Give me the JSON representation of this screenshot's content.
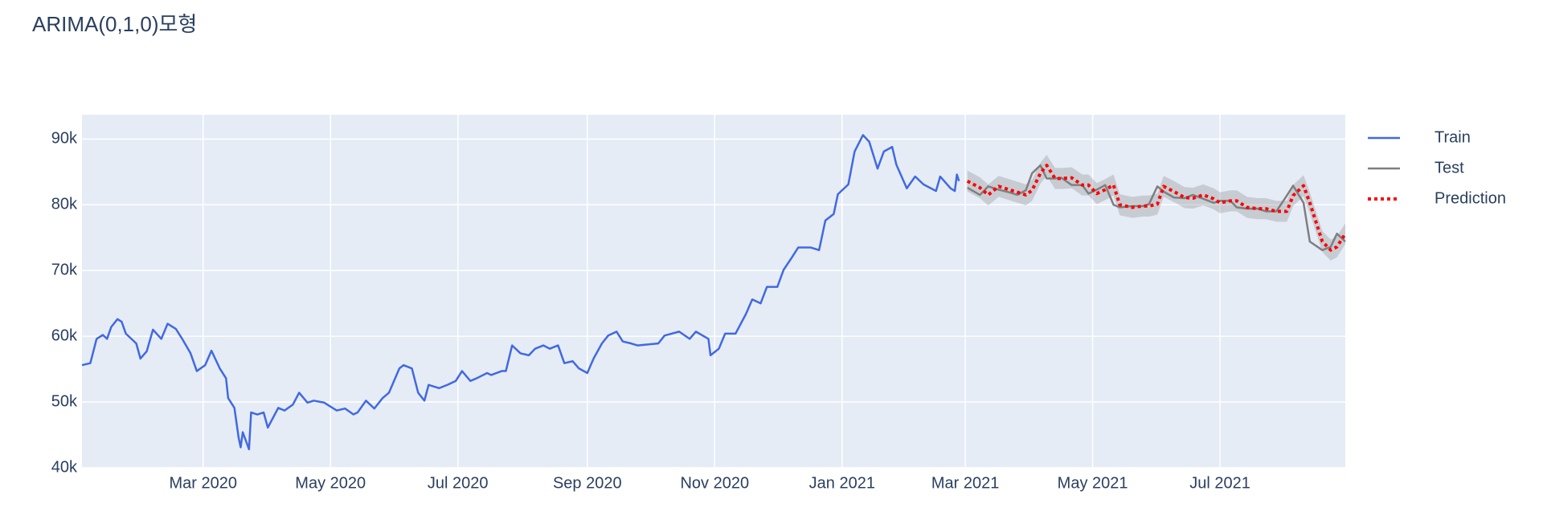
{
  "chart_data": {
    "type": "line",
    "title": "ARIMA(0,1,0)모형",
    "xlim": [
      "2020-01-03",
      "2021-08-30"
    ],
    "xticks": [
      {
        "value": "2020-03-01",
        "label": "Mar 2020"
      },
      {
        "value": "2020-05-01",
        "label": "May 2020"
      },
      {
        "value": "2020-07-01",
        "label": "Jul 2020"
      },
      {
        "value": "2020-09-01",
        "label": "Sep 2020"
      },
      {
        "value": "2020-11-01",
        "label": "Nov 2020"
      },
      {
        "value": "2021-01-01",
        "label": "Jan 2021"
      },
      {
        "value": "2021-03-01",
        "label": "Mar 2021"
      },
      {
        "value": "2021-05-01",
        "label": "May 2021"
      },
      {
        "value": "2021-07-01",
        "label": "Jul 2021"
      }
    ],
    "ylim": [
      40000,
      93700
    ],
    "yticks": [
      {
        "value": 40000,
        "label": "40k"
      },
      {
        "value": 50000,
        "label": "50k"
      },
      {
        "value": 60000,
        "label": "60k"
      },
      {
        "value": 70000,
        "label": "70k"
      },
      {
        "value": 80000,
        "label": "80k"
      },
      {
        "value": 90000,
        "label": "90k"
      }
    ],
    "grid": true,
    "legend": "right",
    "series": [
      {
        "name": "Train",
        "color": "#4169e1",
        "dash": "solid",
        "x": [
          "2020-01-03",
          "2020-01-07",
          "2020-01-10",
          "2020-01-13",
          "2020-01-15",
          "2020-01-17",
          "2020-01-20",
          "2020-01-22",
          "2020-01-24",
          "2020-01-29",
          "2020-01-31",
          "2020-02-03",
          "2020-02-06",
          "2020-02-10",
          "2020-02-13",
          "2020-02-17",
          "2020-02-20",
          "2020-02-24",
          "2020-02-27",
          "2020-03-02",
          "2020-03-05",
          "2020-03-09",
          "2020-03-12",
          "2020-03-13",
          "2020-03-16",
          "2020-03-18",
          "2020-03-19",
          "2020-03-20",
          "2020-03-23",
          "2020-03-24",
          "2020-03-27",
          "2020-03-30",
          "2020-04-01",
          "2020-04-06",
          "2020-04-09",
          "2020-04-13",
          "2020-04-16",
          "2020-04-20",
          "2020-04-23",
          "2020-04-28",
          "2020-05-04",
          "2020-05-08",
          "2020-05-12",
          "2020-05-14",
          "2020-05-18",
          "2020-05-22",
          "2020-05-26",
          "2020-05-29",
          "2020-06-03",
          "2020-06-05",
          "2020-06-09",
          "2020-06-12",
          "2020-06-15",
          "2020-06-17",
          "2020-06-22",
          "2020-06-26",
          "2020-06-30",
          "2020-07-03",
          "2020-07-07",
          "2020-07-10",
          "2020-07-15",
          "2020-07-17",
          "2020-07-22",
          "2020-07-24",
          "2020-07-27",
          "2020-07-31",
          "2020-08-04",
          "2020-08-07",
          "2020-08-11",
          "2020-08-14",
          "2020-08-18",
          "2020-08-21",
          "2020-08-25",
          "2020-08-28",
          "2020-09-01",
          "2020-09-04",
          "2020-09-08",
          "2020-09-11",
          "2020-09-15",
          "2020-09-18",
          "2020-09-22",
          "2020-09-25",
          "2020-10-05",
          "2020-10-08",
          "2020-10-15",
          "2020-10-20",
          "2020-10-23",
          "2020-10-29",
          "2020-10-30",
          "2020-11-03",
          "2020-11-06",
          "2020-11-11",
          "2020-11-16",
          "2020-11-19",
          "2020-11-23",
          "2020-11-26",
          "2020-12-01",
          "2020-12-04",
          "2020-12-08",
          "2020-12-11",
          "2020-12-17",
          "2020-12-21",
          "2020-12-24",
          "2020-12-28",
          "2020-12-30",
          "2021-01-04",
          "2021-01-07",
          "2021-01-11",
          "2021-01-14",
          "2021-01-18",
          "2021-01-21",
          "2021-01-25",
          "2021-01-27",
          "2021-02-01",
          "2021-02-05",
          "2021-02-09",
          "2021-02-15",
          "2021-02-17",
          "2021-02-22",
          "2021-02-24",
          "2021-02-25",
          "2021-02-26"
        ],
        "values": [
          55600,
          55900,
          59600,
          60200,
          59600,
          61400,
          62600,
          62200,
          60400,
          58900,
          56600,
          57700,
          61000,
          59600,
          61900,
          61100,
          59600,
          57400,
          54700,
          55600,
          57800,
          55100,
          53600,
          50600,
          49100,
          44600,
          43100,
          45400,
          42800,
          48400,
          48100,
          48400,
          46100,
          49100,
          48700,
          49600,
          51400,
          49900,
          50200,
          49900,
          48700,
          49000,
          48100,
          48400,
          50200,
          49000,
          50600,
          51400,
          55100,
          55600,
          55100,
          51400,
          50200,
          52600,
          52100,
          52600,
          53200,
          54700,
          53200,
          53600,
          54400,
          54100,
          54700,
          54700,
          58600,
          57400,
          57100,
          58100,
          58600,
          58100,
          58600,
          55900,
          56200,
          55100,
          54400,
          56600,
          58900,
          60100,
          60700,
          59200,
          58900,
          58600,
          58900,
          60100,
          60700,
          59600,
          60700,
          59600,
          57100,
          58100,
          60400,
          60400,
          63400,
          65600,
          65000,
          67500,
          67500,
          70100,
          72000,
          73500,
          73500,
          73100,
          77600,
          78600,
          81600,
          83100,
          88100,
          90600,
          89600,
          85500,
          88100,
          88800,
          86100,
          82500,
          84300,
          83100,
          82100,
          84300,
          82500,
          82100,
          84600,
          83600
        ]
      },
      {
        "name": "Test",
        "color": "#7f7f7f",
        "dash": "solid",
        "x": [
          "2021-03-02",
          "2021-03-08",
          "2021-03-12",
          "2021-03-17",
          "2021-03-22",
          "2021-03-26",
          "2021-03-30",
          "2021-04-02",
          "2021-04-06",
          "2021-04-09",
          "2021-04-13",
          "2021-04-16",
          "2021-04-21",
          "2021-04-26",
          "2021-04-29",
          "2021-05-03",
          "2021-05-07",
          "2021-05-11",
          "2021-05-14",
          "2021-05-20",
          "2021-05-25",
          "2021-05-28",
          "2021-06-01",
          "2021-06-04",
          "2021-06-09",
          "2021-06-14",
          "2021-06-18",
          "2021-06-23",
          "2021-06-28",
          "2021-07-01",
          "2021-07-06",
          "2021-07-09",
          "2021-07-14",
          "2021-07-19",
          "2021-07-23",
          "2021-07-28",
          "2021-08-02",
          "2021-08-05",
          "2021-08-10",
          "2021-08-13",
          "2021-08-19",
          "2021-08-23",
          "2021-08-26",
          "2021-08-30"
        ],
        "values": [
          82600,
          81500,
          82800,
          82300,
          81900,
          81500,
          82200,
          84800,
          86000,
          84000,
          84000,
          84100,
          83000,
          83000,
          81700,
          82300,
          83000,
          80000,
          79600,
          79800,
          79800,
          80100,
          82800,
          82000,
          81100,
          81000,
          81500,
          80900,
          80300,
          80600,
          80600,
          79600,
          79400,
          79400,
          79000,
          79000,
          81400,
          82900,
          80300,
          74400,
          73100,
          73600,
          75600,
          74400
        ]
      },
      {
        "name": "Prediction",
        "color": "#ff0000",
        "dash": "dot",
        "x": [
          "2021-03-02",
          "2021-03-08",
          "2021-03-12",
          "2021-03-17",
          "2021-03-22",
          "2021-03-26",
          "2021-03-30",
          "2021-04-02",
          "2021-04-06",
          "2021-04-09",
          "2021-04-13",
          "2021-04-16",
          "2021-04-21",
          "2021-04-26",
          "2021-04-29",
          "2021-05-03",
          "2021-05-07",
          "2021-05-11",
          "2021-05-14",
          "2021-05-20",
          "2021-05-25",
          "2021-05-28",
          "2021-06-01",
          "2021-06-04",
          "2021-06-09",
          "2021-06-14",
          "2021-06-18",
          "2021-06-23",
          "2021-06-28",
          "2021-07-01",
          "2021-07-06",
          "2021-07-09",
          "2021-07-14",
          "2021-07-19",
          "2021-07-23",
          "2021-07-28",
          "2021-08-02",
          "2021-08-05",
          "2021-08-10",
          "2021-08-13",
          "2021-08-19",
          "2021-08-23",
          "2021-08-26",
          "2021-08-30"
        ],
        "values": [
          83600,
          82600,
          81500,
          82800,
          82300,
          81900,
          81500,
          82200,
          84800,
          86000,
          84000,
          84000,
          84100,
          83000,
          83000,
          81700,
          82300,
          83000,
          80000,
          79600,
          79800,
          79800,
          80100,
          82800,
          82000,
          81100,
          81000,
          81500,
          80900,
          80300,
          80600,
          80600,
          79600,
          79400,
          79400,
          79000,
          79000,
          81400,
          82900,
          80300,
          74400,
          73100,
          73600,
          75600
        ],
        "band": {
          "color": "rgba(128,128,128,0.3)",
          "lower": [
            82000,
            81000,
            79900,
            81200,
            80700,
            80300,
            79900,
            80600,
            83200,
            84400,
            82400,
            82400,
            82500,
            81400,
            81400,
            80100,
            80700,
            81400,
            78400,
            78000,
            78200,
            78200,
            78500,
            81200,
            80400,
            79500,
            79400,
            79900,
            79300,
            78700,
            79000,
            79000,
            78000,
            77800,
            77800,
            77400,
            77400,
            79800,
            81300,
            78700,
            72800,
            71500,
            72000,
            74000
          ],
          "upper": [
            85200,
            84200,
            83100,
            84400,
            83900,
            83500,
            83100,
            83800,
            86400,
            87600,
            85600,
            85600,
            85700,
            84600,
            84600,
            83300,
            83900,
            84600,
            81600,
            81200,
            81400,
            81400,
            81700,
            84400,
            83600,
            82700,
            82600,
            83100,
            82500,
            81900,
            82200,
            82200,
            81200,
            81000,
            81000,
            80600,
            80600,
            83000,
            84500,
            81900,
            76000,
            74700,
            75200,
            77200
          ]
        }
      }
    ]
  }
}
